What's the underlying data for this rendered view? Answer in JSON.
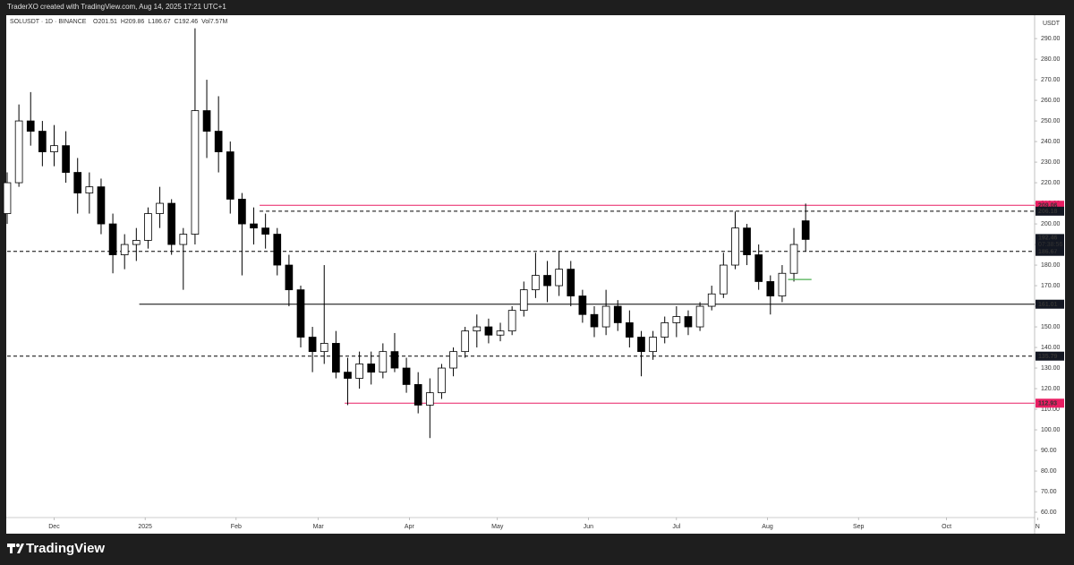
{
  "header": {
    "text": "TraderXO created with TradingView.com, Aug 14, 2025 17:21 UTC+1"
  },
  "footer": {
    "brand": "TradingView"
  },
  "chart_data": {
    "type": "candlestick",
    "symbol": "SOLUSDT · 1D · BINANCE",
    "ohlc_text": [
      "O201.51",
      "H209.86",
      "L186.67",
      "C192.46",
      "Vol7.57M"
    ],
    "unit": "USDT",
    "up_color": "#ffffff",
    "down_color": "#000000",
    "x": [
      -16,
      -12,
      -8,
      -4,
      0,
      4,
      8,
      12,
      16,
      20,
      24,
      28,
      32,
      36,
      40,
      44,
      48,
      52,
      56,
      60,
      64,
      68,
      72,
      76,
      80,
      84,
      88,
      92,
      96,
      100,
      104,
      108,
      112,
      116,
      120,
      124,
      128,
      132,
      136,
      140,
      144,
      148,
      152,
      156,
      160,
      164,
      168,
      172,
      176,
      180,
      184,
      188,
      192,
      196,
      200,
      204,
      208,
      212,
      216,
      220,
      224,
      228,
      232,
      236,
      240,
      244,
      248,
      252,
      256
    ],
    "candles": [
      [
        205,
        225,
        200,
        220
      ],
      [
        220,
        258,
        218,
        250
      ],
      [
        250,
        264,
        238,
        245
      ],
      [
        245,
        250,
        228,
        235
      ],
      [
        235,
        248,
        228,
        238
      ],
      [
        238,
        245,
        220,
        225
      ],
      [
        225,
        232,
        205,
        215
      ],
      [
        215,
        225,
        205,
        218
      ],
      [
        218,
        222,
        195,
        200
      ],
      [
        200,
        205,
        176,
        185
      ],
      [
        185,
        195,
        178,
        190
      ],
      [
        190,
        198,
        182,
        192
      ],
      [
        192,
        208,
        188,
        205
      ],
      [
        205,
        218,
        198,
        210
      ],
      [
        210,
        212,
        185,
        190
      ],
      [
        190,
        198,
        168,
        195
      ],
      [
        195,
        295,
        190,
        255
      ],
      [
        255,
        270,
        232,
        245
      ],
      [
        245,
        262,
        225,
        235
      ],
      [
        235,
        240,
        205,
        212
      ],
      [
        212,
        215,
        175,
        200
      ],
      [
        200,
        208,
        190,
        198
      ],
      [
        198,
        205,
        188,
        195
      ],
      [
        195,
        198,
        175,
        180
      ],
      [
        180,
        185,
        160,
        168
      ],
      [
        168,
        170,
        140,
        145
      ],
      [
        145,
        150,
        128,
        138
      ],
      [
        138,
        180,
        132,
        142
      ],
      [
        142,
        148,
        125,
        128
      ],
      [
        128,
        135,
        112,
        125
      ],
      [
        125,
        138,
        120,
        132
      ],
      [
        132,
        138,
        122,
        128
      ],
      [
        128,
        142,
        125,
        138
      ],
      [
        138,
        147,
        128,
        130
      ],
      [
        130,
        135,
        118,
        122
      ],
      [
        122,
        128,
        108,
        112
      ],
      [
        112,
        125,
        96,
        118
      ],
      [
        118,
        132,
        115,
        130
      ],
      [
        130,
        140,
        126,
        138
      ],
      [
        138,
        150,
        135,
        148
      ],
      [
        148,
        156,
        140,
        150
      ],
      [
        150,
        154,
        142,
        146
      ],
      [
        146,
        152,
        143,
        148
      ],
      [
        148,
        160,
        146,
        158
      ],
      [
        158,
        172,
        155,
        168
      ],
      [
        168,
        186,
        164,
        175
      ],
      [
        175,
        182,
        162,
        170
      ],
      [
        170,
        187,
        165,
        178
      ],
      [
        178,
        182,
        160,
        165
      ],
      [
        165,
        168,
        152,
        156
      ],
      [
        156,
        160,
        145,
        150
      ],
      [
        150,
        168,
        146,
        160
      ],
      [
        160,
        163,
        148,
        152
      ],
      [
        152,
        158,
        140,
        145
      ],
      [
        145,
        148,
        126,
        138
      ],
      [
        138,
        148,
        134,
        145
      ],
      [
        145,
        155,
        142,
        152
      ],
      [
        152,
        160,
        145,
        155
      ],
      [
        155,
        158,
        146,
        150
      ],
      [
        150,
        162,
        148,
        160
      ],
      [
        160,
        170,
        158,
        166
      ],
      [
        166,
        186,
        164,
        180
      ],
      [
        180,
        206,
        178,
        198
      ],
      [
        198,
        200,
        180,
        185
      ],
      [
        185,
        190,
        168,
        172
      ],
      [
        172,
        175,
        156,
        165
      ],
      [
        165,
        180,
        162,
        176
      ],
      [
        176,
        198,
        172,
        190
      ],
      [
        201.51,
        209.86,
        186.67,
        192.46
      ]
    ],
    "levels": [
      {
        "value": 209.06,
        "style": "solid",
        "color": "#e91e63",
        "from": 70
      },
      {
        "value": 206.18,
        "style": "dashed",
        "color": "#000000",
        "from": 70
      },
      {
        "value": 186.67,
        "style": "dashed",
        "color": "#000000"
      },
      {
        "value": 161.01,
        "style": "solid",
        "color": "#000000",
        "from": 29
      },
      {
        "value": 135.79,
        "style": "dashed",
        "color": "#000000"
      },
      {
        "value": 112.93,
        "style": "solid",
        "color": "#e91e63",
        "from": 99
      }
    ],
    "segment": {
      "value": 173,
      "from": 250,
      "to": 258,
      "color": "#4caf50"
    },
    "last_price": 192.46,
    "countdown": "07:38:56",
    "xlim": [
      -16,
      334
    ],
    "ylim": [
      57.4,
      300.9
    ],
    "xticks": [
      {
        "value": 0,
        "label": "Dec"
      },
      {
        "value": 31,
        "label": "2025"
      },
      {
        "value": 62,
        "label": "Feb"
      },
      {
        "value": 90,
        "label": "Mar"
      },
      {
        "value": 121,
        "label": "Apr"
      },
      {
        "value": 151,
        "label": "May"
      },
      {
        "value": 182,
        "label": "Jun"
      },
      {
        "value": 212,
        "label": "Jul"
      },
      {
        "value": 243,
        "label": "Aug"
      },
      {
        "value": 274,
        "label": "Sep"
      },
      {
        "value": 304,
        "label": "Oct"
      },
      {
        "value": 335,
        "label": "N"
      }
    ],
    "yticks": [
      {
        "value": 60,
        "label": "60.00"
      },
      {
        "value": 70,
        "label": "70.00"
      },
      {
        "value": 80,
        "label": "80.00"
      },
      {
        "value": 90,
        "label": "90.00"
      },
      {
        "value": 100,
        "label": "100.00"
      },
      {
        "value": 110,
        "label": "110.00"
      },
      {
        "value": 120,
        "label": "120.00"
      },
      {
        "value": 130,
        "label": "130.00"
      },
      {
        "value": 140,
        "label": "140.00"
      },
      {
        "value": 150,
        "label": "150.00"
      },
      {
        "value": 160,
        "label": "160.00"
      },
      {
        "value": 170,
        "label": "170.00"
      },
      {
        "value": 180,
        "label": "180.00"
      },
      {
        "value": 190,
        "label": "190.00"
      },
      {
        "value": 200,
        "label": "200.00"
      },
      {
        "value": 210,
        "label": "210.00"
      },
      {
        "value": 220,
        "label": "220.00"
      },
      {
        "value": 230,
        "label": "230.00"
      },
      {
        "value": 240,
        "label": "240.00"
      },
      {
        "value": 250,
        "label": "250.00"
      },
      {
        "value": 260,
        "label": "260.00"
      },
      {
        "value": 270,
        "label": "270.00"
      },
      {
        "value": 280,
        "label": "280.00"
      },
      {
        "value": 290,
        "label": "290.00"
      }
    ]
  }
}
